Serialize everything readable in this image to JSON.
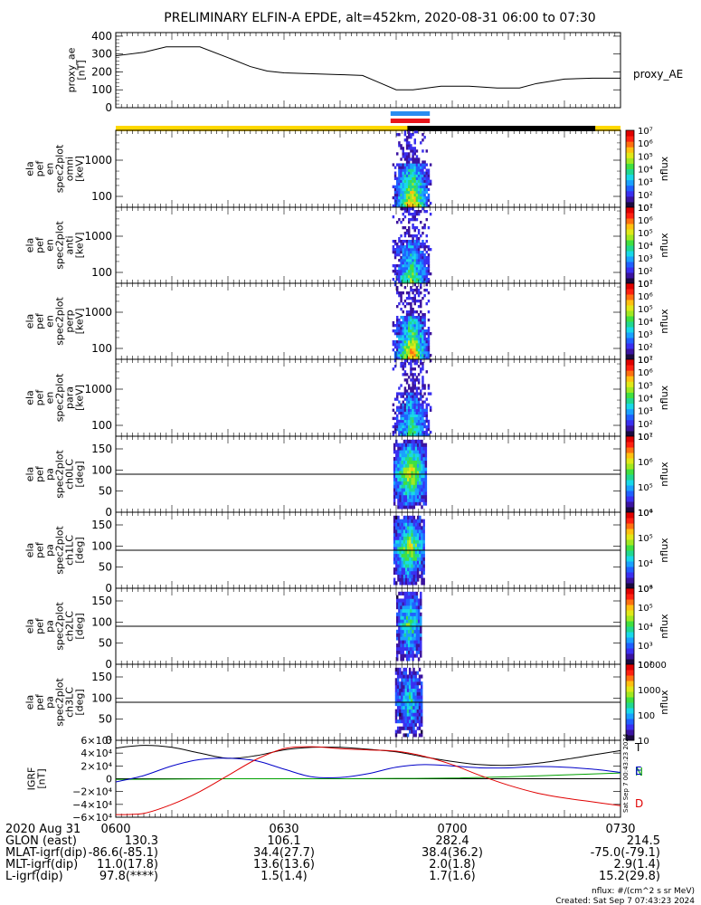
{
  "title": "PRELIMINARY ELFIN-A EPDE, alt=452km, 2020-08-31 06:00 to 07:30",
  "colors": {
    "accent": "#000000",
    "yellow_bar": "#ffd800",
    "blue_bar": "#2a8cf0",
    "red_bar": "#e8141a",
    "black_bar": "#000000"
  },
  "colorbar_colors": [
    "#1a0a40",
    "#3b13a0",
    "#3a2ff0",
    "#2060ff",
    "#1aa0ff",
    "#18d8e8",
    "#20d890",
    "#40e040",
    "#a0e820",
    "#e0e818",
    "#ffc010",
    "#ff7010",
    "#ff2010",
    "#e00000"
  ],
  "chart_data": [
    {
      "type": "line",
      "panel": "proxy_ae",
      "ylabel": [
        "proxy_ae",
        "[nT]"
      ],
      "right_label": "proxy_AE",
      "ylim": [
        0,
        420
      ],
      "yticks": [
        0,
        100,
        200,
        300,
        400
      ],
      "xlim": [
        0,
        90
      ],
      "series": [
        {
          "name": "proxy_AE",
          "x": [
            0,
            5,
            9,
            15,
            20,
            24,
            27,
            30,
            35,
            40,
            44,
            47,
            50,
            53,
            58,
            63,
            68,
            72,
            75,
            80,
            85,
            90
          ],
          "values": [
            290,
            310,
            340,
            340,
            280,
            230,
            205,
            195,
            190,
            185,
            180,
            140,
            100,
            100,
            120,
            120,
            110,
            110,
            135,
            160,
            165,
            165
          ]
        }
      ]
    },
    {
      "type": "heatmap",
      "panel": "spec_omni",
      "ylabel": [
        "ela",
        "pef",
        "en",
        "spec2plot",
        "omni",
        "[keV]"
      ],
      "yscale": "log",
      "yticks": [
        100,
        1000
      ],
      "colorbar": {
        "label": "nflux",
        "ticks": [
          "10^1",
          "10^2",
          "10^3",
          "10^4",
          "10^5",
          "10^6",
          "10^7"
        ]
      }
    },
    {
      "type": "heatmap",
      "panel": "spec_anti",
      "ylabel": [
        "ela",
        "pef",
        "en",
        "spec2plot",
        "anti",
        "[keV]"
      ],
      "yscale": "log",
      "yticks": [
        100,
        1000
      ],
      "colorbar": {
        "label": "nflux",
        "ticks": [
          "10^1",
          "10^2",
          "10^3",
          "10^4",
          "10^5",
          "10^6",
          "10^7"
        ]
      }
    },
    {
      "type": "heatmap",
      "panel": "spec_perp",
      "ylabel": [
        "ela",
        "pef",
        "en",
        "spec2plot",
        "perp",
        "[keV]"
      ],
      "yscale": "log",
      "yticks": [
        100,
        1000
      ],
      "colorbar": {
        "label": "nflux",
        "ticks": [
          "10^1",
          "10^2",
          "10^3",
          "10^4",
          "10^5",
          "10^6",
          "10^7"
        ]
      }
    },
    {
      "type": "heatmap",
      "panel": "spec_para",
      "ylabel": [
        "ela",
        "pef",
        "en",
        "spec2plot",
        "para",
        "[keV]"
      ],
      "yscale": "log",
      "yticks": [
        100,
        1000
      ],
      "colorbar": {
        "label": "nflux",
        "ticks": [
          "10^1",
          "10^2",
          "10^3",
          "10^4",
          "10^5",
          "10^6",
          "10^7"
        ]
      }
    },
    {
      "type": "heatmap",
      "panel": "pa_ch0LC",
      "ylabel": [
        "ela",
        "pef",
        "pa",
        "spec2plot",
        "ch0LC",
        "[deg]"
      ],
      "ylim": [
        0,
        180
      ],
      "yticks": [
        0,
        50,
        100,
        150
      ],
      "colorbar": {
        "label": "nflux",
        "ticks": [
          "10^4",
          "10^5",
          "10^6",
          "10^7"
        ]
      }
    },
    {
      "type": "heatmap",
      "panel": "pa_ch1LC",
      "ylabel": [
        "ela",
        "pef",
        "pa",
        "spec2plot",
        "ch1LC",
        "[deg]"
      ],
      "ylim": [
        0,
        180
      ],
      "yticks": [
        0,
        50,
        100,
        150
      ],
      "colorbar": {
        "label": "nflux",
        "ticks": [
          "10^3",
          "10^4",
          "10^5",
          "10^6"
        ]
      }
    },
    {
      "type": "heatmap",
      "panel": "pa_ch2LC",
      "ylabel": [
        "ela",
        "pef",
        "pa",
        "spec2plot",
        "ch2LC",
        "[deg]"
      ],
      "ylim": [
        0,
        180
      ],
      "yticks": [
        0,
        50,
        100,
        150
      ],
      "colorbar": {
        "label": "nflux",
        "ticks": [
          "10^2",
          "10^3",
          "10^4",
          "10^5",
          "10^6"
        ]
      }
    },
    {
      "type": "heatmap",
      "panel": "pa_ch3LC",
      "ylabel": [
        "ela",
        "pef",
        "pa",
        "spec2plot",
        "ch3LC",
        "[deg]"
      ],
      "ylim": [
        0,
        180
      ],
      "yticks": [
        0,
        50,
        100,
        150
      ],
      "colorbar": {
        "label": "nflux",
        "ticks": [
          "10",
          "100",
          "1000",
          "10000"
        ]
      }
    },
    {
      "type": "line",
      "panel": "igrf",
      "ylabel": [
        "IGRF",
        "[nT]"
      ],
      "ylim": [
        -60000,
        60000
      ],
      "yticks": [
        -60000,
        -40000,
        -20000,
        0,
        20000,
        40000,
        60000
      ],
      "ytick_labels": [
        "−6×10⁴",
        "−4×10⁴",
        "−2×10⁴",
        "0",
        "2×10⁴",
        "4×10⁴",
        "6×10⁴"
      ],
      "xlim": [
        0,
        90
      ],
      "series": [
        {
          "name": "T",
          "color": "#000000",
          "x": [
            0,
            5,
            10,
            15,
            20,
            25,
            30,
            35,
            40,
            45,
            50,
            55,
            60,
            65,
            70,
            75,
            80,
            85,
            90
          ],
          "values": [
            48000,
            52000,
            49000,
            40000,
            32000,
            36000,
            45000,
            49000,
            49000,
            46000,
            42000,
            34000,
            27000,
            22000,
            21000,
            24000,
            30000,
            37000,
            44000
          ]
        },
        {
          "name": "N",
          "color": "#00a000",
          "x": [
            0,
            10,
            20,
            30,
            40,
            50,
            60,
            70,
            80,
            90
          ],
          "values": [
            -1000,
            -500,
            0,
            0,
            0,
            500,
            1000,
            3000,
            6000,
            9000
          ]
        },
        {
          "name": "E",
          "color": "#0000c8",
          "x": [
            0,
            5,
            10,
            15,
            20,
            25,
            30,
            35,
            40,
            45,
            50,
            55,
            60,
            65,
            70,
            75,
            80,
            85,
            90
          ],
          "values": [
            -5000,
            5000,
            20000,
            30000,
            32000,
            28000,
            15000,
            3000,
            2000,
            8000,
            18000,
            22000,
            20000,
            17000,
            17000,
            19000,
            18000,
            15000,
            10000
          ]
        },
        {
          "name": "D",
          "color": "#e00000",
          "x": [
            0,
            5,
            10,
            15,
            20,
            25,
            30,
            35,
            40,
            45,
            50,
            55,
            60,
            65,
            70,
            75,
            80,
            85,
            90
          ],
          "values": [
            -56000,
            -54000,
            -40000,
            -20000,
            5000,
            30000,
            47000,
            50000,
            47000,
            45000,
            43000,
            35000,
            22000,
            5000,
            -10000,
            -22000,
            -30000,
            -36000,
            -42000
          ]
        }
      ],
      "series_labels": [
        "T",
        "N",
        "E",
        "D"
      ]
    }
  ],
  "footer": {
    "times": [
      "0600",
      "0630",
      "0700",
      "0730"
    ],
    "rows": [
      {
        "label": "2020 Aug 31",
        "values": [
          "",
          "",
          "",
          ""
        ]
      },
      {
        "label": "GLON (east)",
        "values": [
          "130.3",
          "106.1",
          "282.4",
          "214.5"
        ]
      },
      {
        "label": "MLAT-igrf(dip)",
        "values": [
          "-86.6(-85.1)",
          "34.4(27.7)",
          "38.4(36.2)",
          "-75.0(-79.1)"
        ]
      },
      {
        "label": "MLT-igrf(dip)",
        "values": [
          "11.0(17.8)",
          "13.6(13.6)",
          "2.0(1.8)",
          "2.9(1.4)"
        ]
      },
      {
        "label": "L-igrf(dip)",
        "values": [
          "97.8(****)",
          "1.5(1.4)",
          "1.7(1.6)",
          "15.2(29.8)"
        ]
      }
    ],
    "nflux_units": "nflux: #/(cm^2 s sr MeV)",
    "created": "Created: Sat Sep  7 07:43:23 2024",
    "stamp": "Sat Sep  7 00:43:23 2024"
  }
}
